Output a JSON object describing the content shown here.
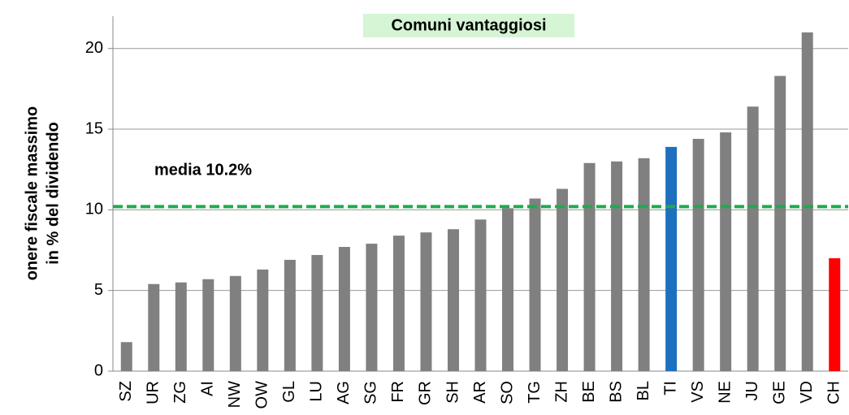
{
  "chart_data": {
    "type": "bar",
    "title": "Comuni vantaggiosi",
    "y_label": [
      "onere fiscale massimo",
      "in % del dividendo"
    ],
    "categories": [
      "SZ",
      "UR",
      "ZG",
      "AI",
      "NW",
      "OW",
      "GL",
      "LU",
      "AG",
      "SG",
      "FR",
      "GR",
      "SH",
      "AR",
      "SO",
      "TG",
      "ZH",
      "BE",
      "BS",
      "BL",
      "TI",
      "VS",
      "NE",
      "JU",
      "GE",
      "VD",
      "CH"
    ],
    "values": [
      1.8,
      5.4,
      5.5,
      5.7,
      5.9,
      6.3,
      6.9,
      7.2,
      7.7,
      7.9,
      8.4,
      8.6,
      8.8,
      9.4,
      10.1,
      10.7,
      11.3,
      12.9,
      13.0,
      13.2,
      13.9,
      14.4,
      14.8,
      16.4,
      18.3,
      21.0,
      7.0
    ],
    "colors": [
      "#808080",
      "#808080",
      "#808080",
      "#808080",
      "#808080",
      "#808080",
      "#808080",
      "#808080",
      "#808080",
      "#808080",
      "#808080",
      "#808080",
      "#808080",
      "#808080",
      "#808080",
      "#808080",
      "#808080",
      "#808080",
      "#808080",
      "#808080",
      "#1f6fbf",
      "#808080",
      "#808080",
      "#808080",
      "#808080",
      "#808080",
      "#ff0000"
    ],
    "mean": 10.2,
    "mean_label": "media 10.2%",
    "mean_color": "#1faa4f",
    "ylim": [
      0,
      22
    ],
    "yticks": [
      0,
      5,
      10,
      15,
      20
    ],
    "grid": true
  }
}
